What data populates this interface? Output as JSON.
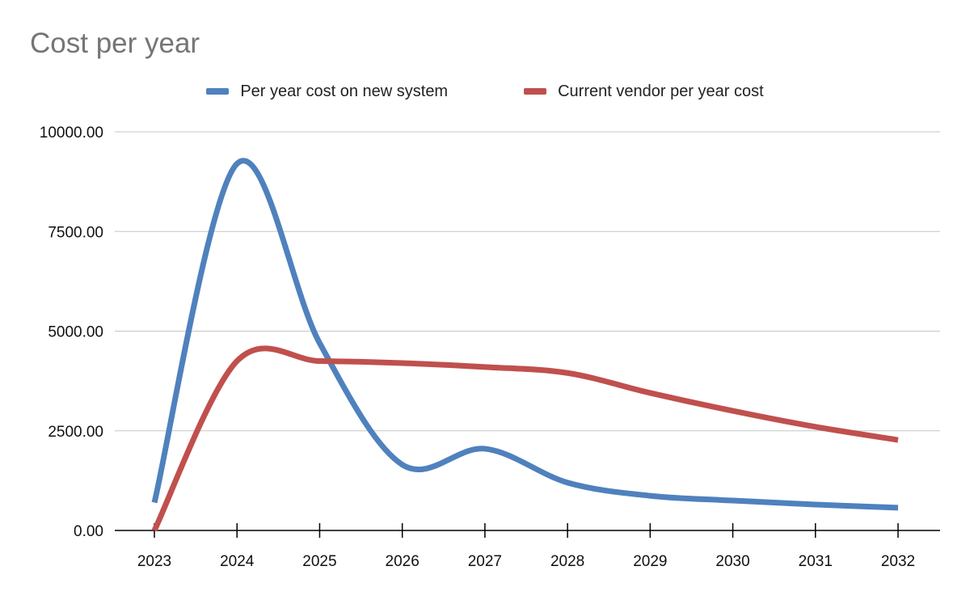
{
  "chart_data": {
    "type": "line",
    "title": "Cost per year",
    "categories": [
      "2023",
      "2024",
      "2025",
      "2026",
      "2027",
      "2028",
      "2029",
      "2030",
      "2031",
      "2032"
    ],
    "series": [
      {
        "name": "Per year cost on new system",
        "color": "#4F81BD",
        "values": [
          700,
          9200,
          4700,
          1650,
          2050,
          1200,
          870,
          750,
          650,
          570
        ]
      },
      {
        "name": "Current vendor per year cost",
        "color": "#C0504D",
        "values": [
          0,
          4250,
          4250,
          4200,
          4100,
          3950,
          3450,
          3000,
          2600,
          2270
        ]
      }
    ],
    "y_ticks": [
      "0.00",
      "2500.00",
      "5000.00",
      "7500.00",
      "10000.00"
    ],
    "ylim": [
      0,
      10000
    ],
    "grid": true,
    "legend_position": "top-center",
    "smooth": true
  }
}
